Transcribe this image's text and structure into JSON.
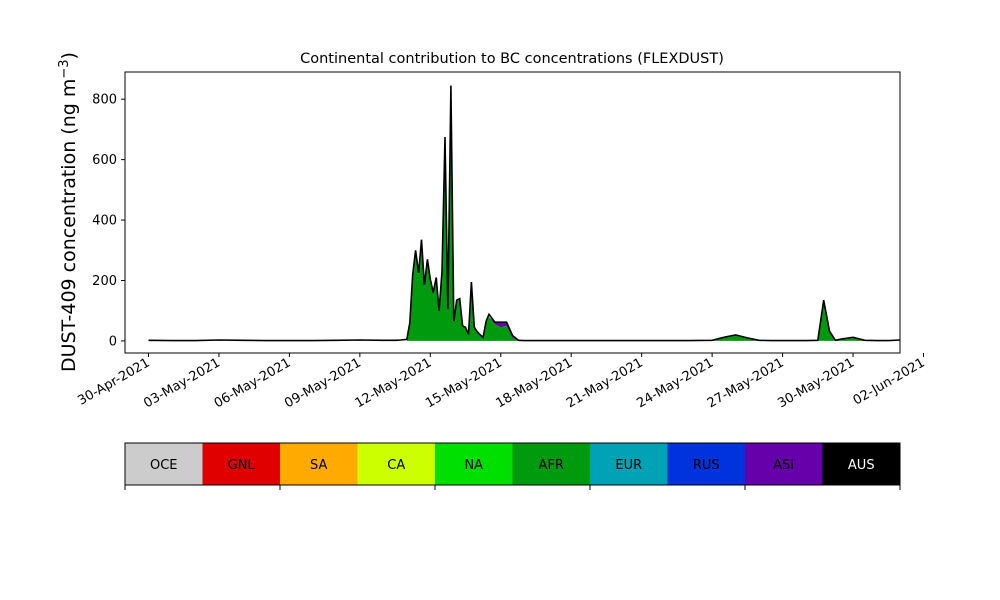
{
  "chart_data": {
    "type": "area",
    "title": "Continental contribution to BC concentrations (FLEXDUST)",
    "ylabel": "DUST-409 concentration (ng m",
    "ylabel_sup": "−3",
    "ylabel_close": ")",
    "xlabel": "",
    "xlim": [
      "2021-04-29",
      "2021-06-01"
    ],
    "ylim": [
      -40,
      890
    ],
    "grid": false,
    "x_ticks": [
      "30-Apr-2021",
      "03-May-2021",
      "06-May-2021",
      "09-May-2021",
      "12-May-2021",
      "15-May-2021",
      "18-May-2021",
      "21-May-2021",
      "24-May-2021",
      "27-May-2021",
      "30-May-2021",
      "02-Jun-2021"
    ],
    "y_ticks": [
      0,
      200,
      400,
      600,
      800
    ],
    "series_dominant": "AFR",
    "total_color": "#000000",
    "stack_order": [
      "OCE",
      "GNL",
      "SA",
      "CA",
      "NA",
      "AFR",
      "EUR",
      "RUS",
      "ASI",
      "AUS"
    ],
    "x": [
      "2021-04-30T00",
      "2021-05-01T00",
      "2021-05-02T00",
      "2021-05-03T00",
      "2021-05-04T00",
      "2021-05-05T00",
      "2021-05-06T00",
      "2021-05-07T00",
      "2021-05-08T00",
      "2021-05-09T00",
      "2021-05-10T00",
      "2021-05-10T06",
      "2021-05-10T12",
      "2021-05-10T18",
      "2021-05-11T00",
      "2021-05-11T03",
      "2021-05-11T06",
      "2021-05-11T09",
      "2021-05-11T12",
      "2021-05-11T15",
      "2021-05-11T18",
      "2021-05-11T21",
      "2021-05-12T00",
      "2021-05-12T03",
      "2021-05-12T06",
      "2021-05-12T09",
      "2021-05-12T12",
      "2021-05-12T15",
      "2021-05-12T18",
      "2021-05-12T21",
      "2021-05-13T00",
      "2021-05-13T03",
      "2021-05-13T06",
      "2021-05-13T09",
      "2021-05-13T12",
      "2021-05-13T15",
      "2021-05-13T18",
      "2021-05-13T21",
      "2021-05-14T00",
      "2021-05-14T03",
      "2021-05-14T06",
      "2021-05-14T09",
      "2021-05-14T12",
      "2021-05-14T18",
      "2021-05-15T00",
      "2021-05-15T06",
      "2021-05-15T12",
      "2021-05-15T18",
      "2021-05-16T00",
      "2021-05-16T06",
      "2021-05-16T12",
      "2021-05-16T18",
      "2021-05-17T00",
      "2021-05-17T12",
      "2021-05-18T00",
      "2021-05-19T00",
      "2021-05-20T00",
      "2021-05-21T00",
      "2021-05-22T00",
      "2021-05-23T00",
      "2021-05-24T00",
      "2021-05-24T12",
      "2021-05-25T00",
      "2021-05-25T12",
      "2021-05-26T00",
      "2021-05-26T12",
      "2021-05-27T00",
      "2021-05-28T00",
      "2021-05-28T12",
      "2021-05-28T18",
      "2021-05-29T00",
      "2021-05-29T06",
      "2021-05-29T12",
      "2021-05-30T00",
      "2021-05-30T12",
      "2021-05-31T00",
      "2021-05-31T12",
      "2021-06-01T00"
    ],
    "series": [
      {
        "name": "AFR",
        "values": [
          0,
          0,
          0,
          0,
          0,
          0,
          0,
          0,
          0,
          0,
          0,
          0,
          0,
          0,
          0,
          60,
          200,
          300,
          220,
          330,
          180,
          270,
          200,
          160,
          210,
          100,
          230,
          670,
          100,
          840,
          60,
          130,
          140,
          50,
          40,
          20,
          190,
          40,
          30,
          20,
          10,
          60,
          80,
          55,
          45,
          50,
          10,
          0,
          0,
          0,
          0,
          0,
          0,
          0,
          0,
          0,
          0,
          0,
          0,
          0,
          0,
          10,
          20,
          8,
          0,
          0,
          0,
          0,
          0,
          130,
          30,
          0,
          5,
          10,
          0,
          0,
          0,
          0
        ]
      },
      {
        "name": "ASI",
        "values": [
          0,
          0,
          0,
          0,
          0,
          0,
          0,
          0,
          0,
          0,
          0,
          0,
          0,
          0,
          0,
          0,
          0,
          0,
          0,
          0,
          0,
          0,
          0,
          0,
          0,
          0,
          0,
          0,
          0,
          0,
          0,
          0,
          0,
          0,
          0,
          0,
          0,
          0,
          0,
          0,
          0,
          0,
          0,
          5,
          15,
          10,
          5,
          0,
          0,
          0,
          0,
          0,
          0,
          0,
          0,
          0,
          0,
          0,
          0,
          0,
          0,
          0,
          0,
          0,
          0,
          0,
          0,
          0,
          0,
          0,
          0,
          0,
          0,
          0,
          0,
          0,
          0,
          0
        ]
      }
    ],
    "total": [
      2,
      1,
      1,
      3,
      2,
      1,
      1,
      1,
      2,
      3,
      2,
      2,
      2,
      3,
      5,
      60,
      220,
      300,
      225,
      335,
      185,
      270,
      205,
      160,
      210,
      100,
      230,
      675,
      105,
      845,
      65,
      135,
      140,
      50,
      45,
      22,
      195,
      45,
      30,
      20,
      12,
      65,
      88,
      62,
      62,
      62,
      18,
      2,
      1,
      1,
      1,
      1,
      1,
      1,
      1,
      1,
      1,
      1,
      1,
      1,
      2,
      12,
      20,
      10,
      2,
      1,
      1,
      1,
      2,
      135,
      32,
      2,
      6,
      12,
      2,
      1,
      1,
      3
    ]
  },
  "legend": {
    "items": [
      {
        "label": "OCE",
        "color": "#cccccc",
        "text_color": "#000000"
      },
      {
        "label": "GNL",
        "color": "#e00000",
        "text_color": "#000000"
      },
      {
        "label": "SA",
        "color": "#ffaa00",
        "text_color": "#000000"
      },
      {
        "label": "CA",
        "color": "#ccff00",
        "text_color": "#000000"
      },
      {
        "label": "NA",
        "color": "#00e000",
        "text_color": "#000000"
      },
      {
        "label": "AFR",
        "color": "#009a0f",
        "text_color": "#000000"
      },
      {
        "label": "EUR",
        "color": "#00a3b5",
        "text_color": "#000000"
      },
      {
        "label": "RUS",
        "color": "#0033dd",
        "text_color": "#000000"
      },
      {
        "label": "ASI",
        "color": "#6600aa",
        "text_color": "#000000"
      },
      {
        "label": "AUS",
        "color": "#000000",
        "text_color": "#ffffff"
      }
    ]
  }
}
